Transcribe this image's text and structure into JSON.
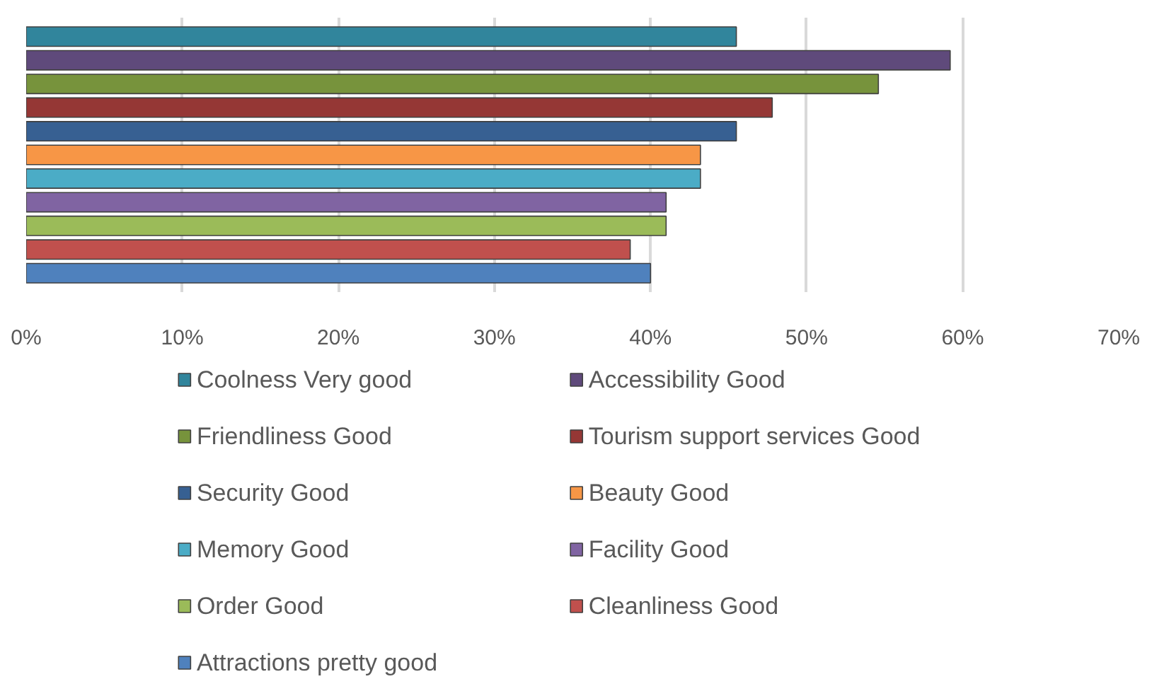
{
  "chart_data": {
    "type": "bar",
    "orientation": "horizontal",
    "categories": [
      null
    ],
    "series": [
      {
        "name": "Coolness Very good",
        "color": "#31859c",
        "values": [
          45.5
        ]
      },
      {
        "name": "Accessibility Good",
        "color": "#5f4a7b",
        "values": [
          59.2
        ]
      },
      {
        "name": "Friendliness Good",
        "color": "#77933c",
        "values": [
          54.6
        ]
      },
      {
        "name": "Tourism support services Good",
        "color": "#953735",
        "values": [
          47.8
        ]
      },
      {
        "name": "Security Good",
        "color": "#376092",
        "values": [
          45.5
        ]
      },
      {
        "name": "Beauty Good",
        "color": "#f79646",
        "values": [
          43.2
        ]
      },
      {
        "name": "Memory Good",
        "color": "#4bacc6",
        "values": [
          43.2
        ]
      },
      {
        "name": "Facility Good",
        "color": "#8064a2",
        "values": [
          41.0
        ]
      },
      {
        "name": "Order Good",
        "color": "#9bbb59",
        "values": [
          41.0
        ]
      },
      {
        "name": "Cleanliness Good",
        "color": "#c0504d",
        "values": [
          38.7
        ]
      },
      {
        "name": "Attractions pretty good",
        "color": "#4f81bd",
        "values": [
          40.0
        ]
      }
    ],
    "xlim": [
      0,
      70
    ],
    "xticks": [
      {
        "value": 0,
        "label": "0%"
      },
      {
        "value": 10,
        "label": "10%"
      },
      {
        "value": 20,
        "label": "20%"
      },
      {
        "value": 30,
        "label": "30%"
      },
      {
        "value": 40,
        "label": "40%"
      },
      {
        "value": 50,
        "label": "50%"
      },
      {
        "value": 60,
        "label": "60%"
      },
      {
        "value": 70,
        "label": "70%"
      }
    ],
    "grid": "x",
    "legend": "bottom",
    "tick_labels": "x"
  }
}
